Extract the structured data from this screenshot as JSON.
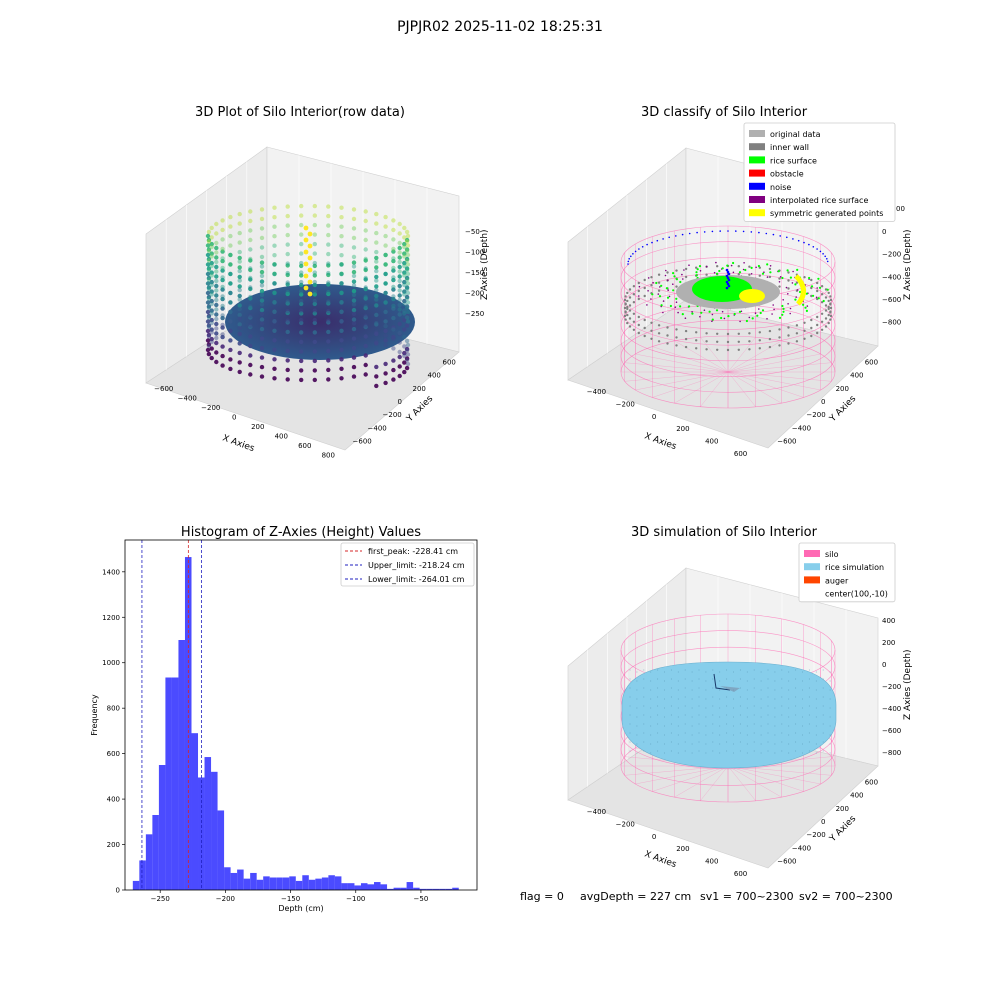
{
  "suptitle": "PJPJR02 2025-11-02 18:25:31",
  "footer": {
    "flag": "flag = 0",
    "avg_depth": "avgDepth = 227 cm",
    "sv1": "sv1 = 700~2300",
    "sv2": "sv2 = 700~2300"
  },
  "colors": {
    "hist_bar": "#4b4bff",
    "first_peak_line": "#d62728",
    "limit_line": "#1f1fbf",
    "rice_surface": "#00ff00",
    "original_data": "#b0b0b0",
    "inner_wall": "#808080",
    "obstacle": "#ff0000",
    "noise": "#0000ff",
    "interpolated_rice_surface": "#800080",
    "symmetric_points": "#ffff00",
    "silo": "#ff69b4",
    "rice_simulation": "#87ceeb",
    "auger": "#ff4500"
  },
  "chart_data": [
    {
      "type": "scatter",
      "subtype": "3d",
      "title": "3D Plot of Silo Interior(row data)",
      "xlabel": "X Axies",
      "ylabel": "Y Axies",
      "zlabel": "Z Axies (Depth)",
      "x_ticks": [
        "−600",
        "−400",
        "−200",
        "0",
        "200",
        "400",
        "600",
        "800"
      ],
      "y_ticks": [
        "−600",
        "−400",
        "−200",
        "0",
        "200",
        "400",
        "600"
      ],
      "z_ticks": [
        "−50",
        "−100",
        "−150",
        "−200",
        "−250"
      ],
      "colormap": "viridis"
    },
    {
      "type": "scatter",
      "subtype": "3d",
      "title": "3D classify of Silo Interior",
      "xlabel": "X Axies",
      "ylabel": "Y Axies",
      "zlabel": "Z Axies (Depth)",
      "x_ticks": [
        "−400",
        "−200",
        "0",
        "200",
        "400",
        "600"
      ],
      "y_ticks": [
        "−600",
        "−400",
        "−200",
        "0",
        "200",
        "400",
        "600"
      ],
      "z_ticks": [
        "200",
        "0",
        "−200",
        "−400",
        "−600",
        "−800"
      ],
      "z_ticks_top": "00",
      "legend": [
        "original data",
        "inner wall",
        "rice surface",
        "obstacle",
        "noise",
        "interpolated rice surface",
        "symmetric generated points"
      ],
      "legend_position": "upper-right"
    },
    {
      "type": "bar",
      "subtype": "histogram",
      "title": "Histogram of Z-Axies (Height) Values",
      "xlabel": "Depth (cm)",
      "ylabel": "Frequency",
      "xlim": [
        -277,
        -7
      ],
      "ylim": [
        0,
        1540
      ],
      "x_ticks": [
        -250,
        -200,
        -150,
        -100,
        -50
      ],
      "x_tick_labels": [
        "−250",
        "−200",
        "−150",
        "−100",
        "−50"
      ],
      "y_ticks": [
        0,
        200,
        400,
        600,
        800,
        1000,
        1200,
        1400
      ],
      "bin_width": 5,
      "bins_start": -271,
      "values": [
        40,
        130,
        245,
        330,
        550,
        935,
        935,
        1100,
        1465,
        690,
        495,
        585,
        520,
        350,
        100,
        75,
        90,
        50,
        75,
        45,
        60,
        55,
        55,
        55,
        60,
        40,
        65,
        45,
        50,
        55,
        65,
        60,
        30,
        30,
        20,
        30,
        25,
        35,
        25,
        5,
        10,
        10,
        35,
        10,
        5,
        5,
        5,
        5,
        5,
        10
      ],
      "vlines": [
        {
          "label": "first_peak: -228.41 cm",
          "x": -228.41,
          "color": "#d62728"
        },
        {
          "label": "Upper_limit: -218.24 cm",
          "x": -218.24,
          "color": "#1f1fbf"
        },
        {
          "label": "Lower_limit: -264.01 cm",
          "x": -264.01,
          "color": "#1f1fbf"
        }
      ],
      "legend_position": "upper-right"
    },
    {
      "type": "scatter",
      "subtype": "3d",
      "title": "3D simulation of Silo Interior",
      "xlabel": "X Axies",
      "ylabel": "Y Axies",
      "zlabel": "Z Axies (Depth)",
      "x_ticks": [
        "−400",
        "−200",
        "0",
        "200",
        "400",
        "600"
      ],
      "y_ticks": [
        "−600",
        "−400",
        "−200",
        "0",
        "200",
        "400",
        "600"
      ],
      "z_ticks": [
        "400",
        "200",
        "0",
        "−200",
        "−400",
        "−600",
        "−800"
      ],
      "legend": [
        "silo",
        "rice simulation",
        "auger",
        "center(100,-10)"
      ],
      "legend_position": "upper-right"
    }
  ]
}
